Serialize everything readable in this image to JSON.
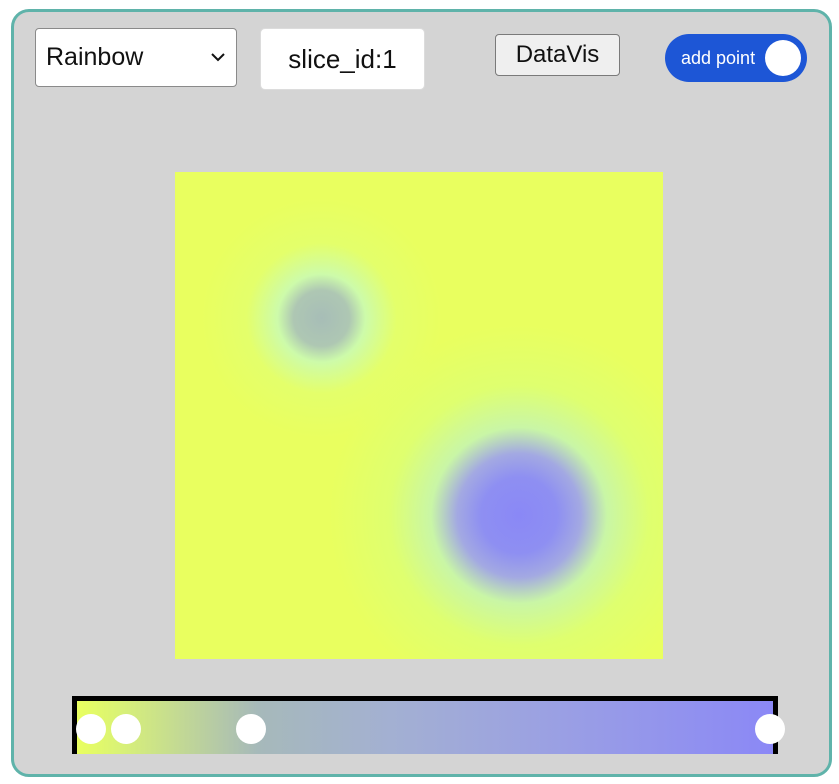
{
  "toolbar": {
    "colormap_value": "Rainbow",
    "slice_label": "slice_id:",
    "slice_value": "1",
    "datavis_label": "DataVis",
    "add_point_label": "add point",
    "add_point_on": true
  },
  "colors": {
    "frame_border": "#5fb3aa",
    "panel_bg": "#d4d4d4",
    "toggle_on": "#1d56d6",
    "colormap_low": "#e9ff5f",
    "colormap_high": "#8b88f6"
  },
  "colorbar": {
    "control_point_positions": [
      0.02,
      0.07,
      0.25,
      0.995
    ]
  },
  "icons": {
    "select_arrow": "chevron-down-icon"
  }
}
